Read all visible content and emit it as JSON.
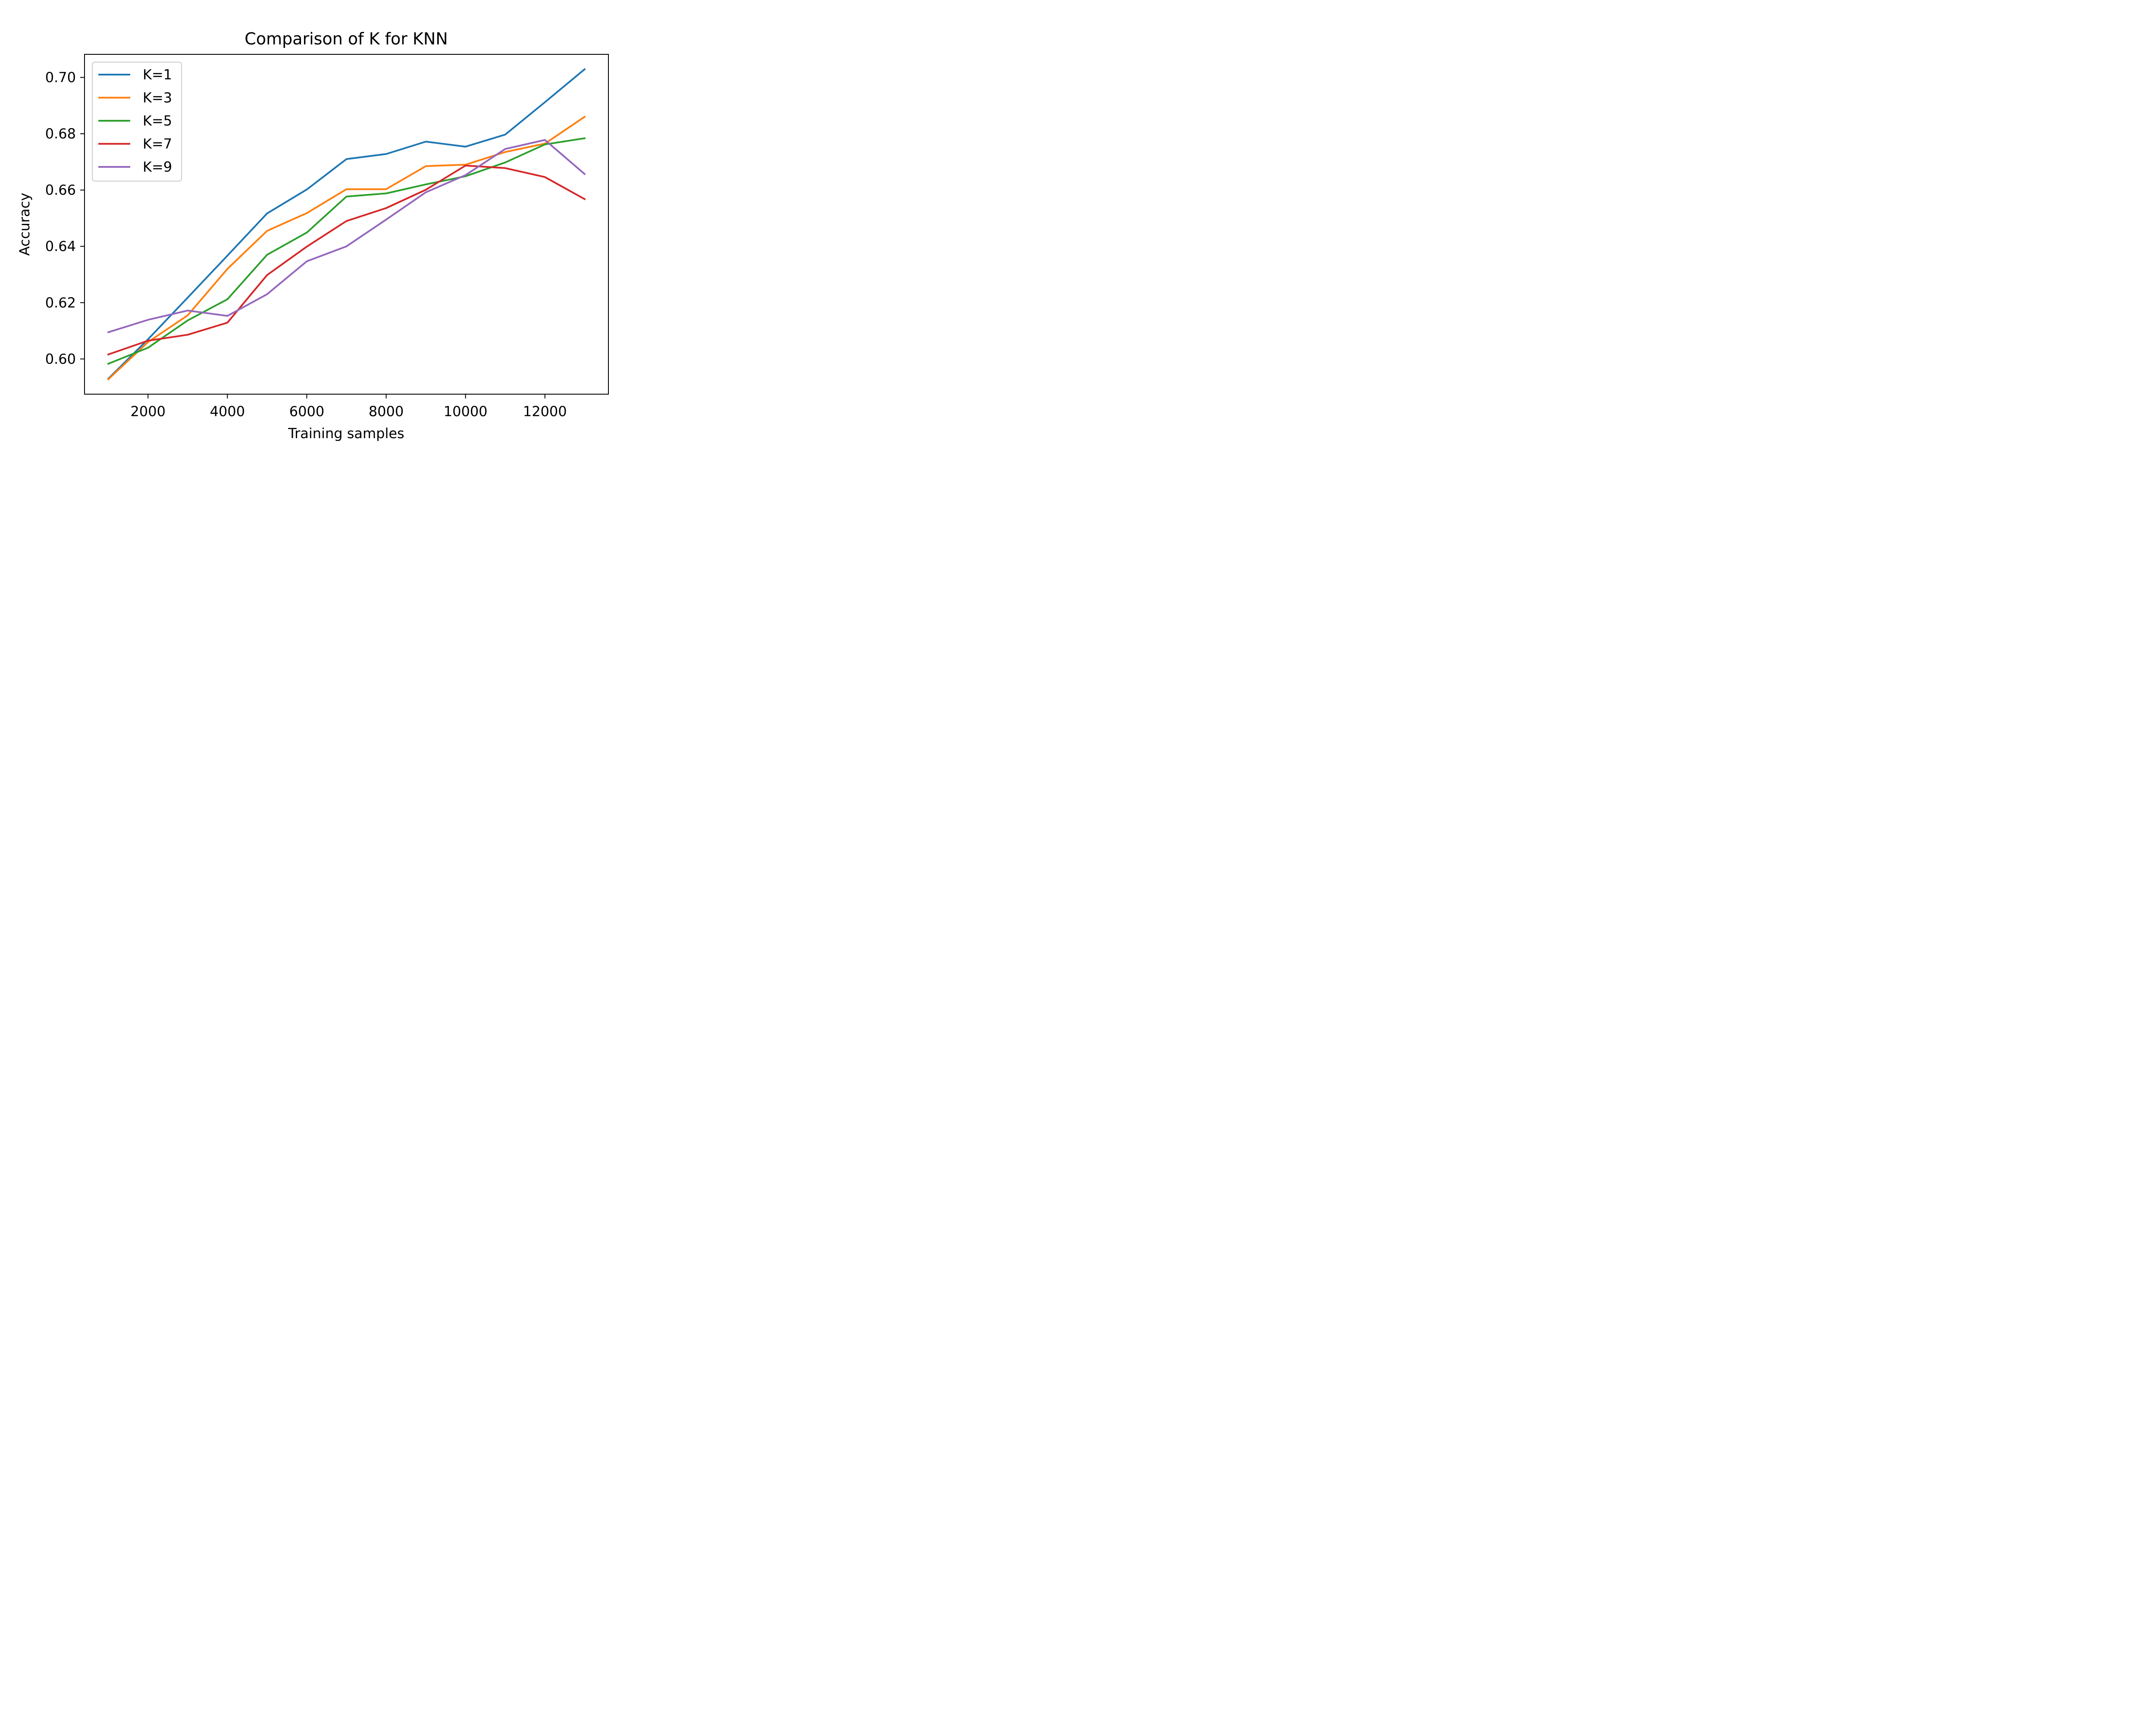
{
  "chart_data": {
    "type": "line",
    "title": "Comparison of K for KNN",
    "xlabel": "Training samples",
    "ylabel": "Accuracy",
    "xlim": [
      400,
      13600
    ],
    "ylim": [
      0.5875,
      0.7082
    ],
    "xticks": [
      2000,
      4000,
      6000,
      8000,
      10000,
      12000
    ],
    "xtick_labels": [
      "2000",
      "4000",
      "6000",
      "8000",
      "10000",
      "12000"
    ],
    "yticks": [
      0.6,
      0.62,
      0.64,
      0.66,
      0.68,
      0.7
    ],
    "ytick_labels": [
      "0.60",
      "0.62",
      "0.64",
      "0.66",
      "0.68",
      "0.70"
    ],
    "grid": false,
    "legend_position": "upper-left",
    "x": [
      1000,
      2000,
      3000,
      4000,
      5000,
      6000,
      7000,
      8000,
      9000,
      10000,
      11000,
      12000,
      13000
    ],
    "series": [
      {
        "name": "K=1",
        "color": "#1f77b4",
        "values": [
          0.593,
          0.607,
          0.6218,
          0.6367,
          0.6517,
          0.6602,
          0.671,
          0.6728,
          0.6772,
          0.6754,
          0.6797,
          0.6912,
          0.7029
        ]
      },
      {
        "name": "K=3",
        "color": "#ff7f0e",
        "values": [
          0.5928,
          0.606,
          0.6155,
          0.632,
          0.6455,
          0.6518,
          0.6603,
          0.6603,
          0.6685,
          0.669,
          0.6735,
          0.6765,
          0.686
        ]
      },
      {
        "name": "K=5",
        "color": "#2ca02c",
        "values": [
          0.5983,
          0.604,
          0.6137,
          0.6212,
          0.637,
          0.6449,
          0.6577,
          0.6588,
          0.662,
          0.6649,
          0.6698,
          0.6762,
          0.6784
        ]
      },
      {
        "name": "K=7",
        "color": "#d62728",
        "values": [
          0.6016,
          0.6065,
          0.6086,
          0.6129,
          0.6298,
          0.6399,
          0.649,
          0.6536,
          0.6601,
          0.6687,
          0.6678,
          0.6646,
          0.6568
        ]
      },
      {
        "name": "K=9",
        "color": "#9467bd",
        "values": [
          0.6095,
          0.6139,
          0.6172,
          0.6153,
          0.623,
          0.6347,
          0.64,
          0.6495,
          0.6592,
          0.6653,
          0.6746,
          0.6778,
          0.6657
        ]
      }
    ]
  }
}
